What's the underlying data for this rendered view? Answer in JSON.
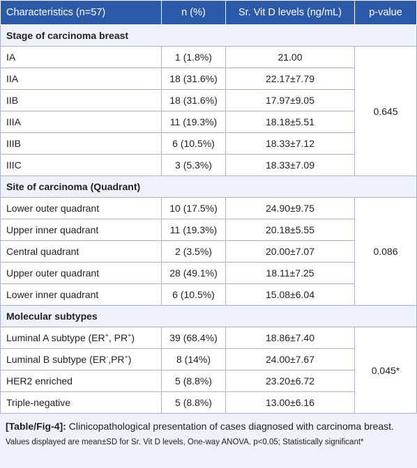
{
  "header": {
    "characteristics": "Characteristics (n=57)",
    "n_pct": "n (%)",
    "vitd": "Sr. Vit D levels (ng/mL)",
    "pvalue": "p-value"
  },
  "sections": [
    {
      "title": "Stage of carcinoma breast",
      "p_value": "0.645",
      "rows": [
        {
          "label": "IA",
          "n": "1 (1.8%)",
          "value": "21.00"
        },
        {
          "label": "IIA",
          "n": "18 (31.6%)",
          "value": "22.17±7.79"
        },
        {
          "label": "IIB",
          "n": "18 (31.6%)",
          "value": "17.97±9.05"
        },
        {
          "label": "IIIA",
          "n": "11 (19.3%)",
          "value": "18.18±5.51"
        },
        {
          "label": "IIIB",
          "n": "6 (10.5%)",
          "value": "18.33±7.12"
        },
        {
          "label": "IIIC",
          "n": "3 (5.3%)",
          "value": "18.33±7.09"
        }
      ]
    },
    {
      "title": "Site of carcinoma (Quadrant)",
      "p_value": "0.086",
      "rows": [
        {
          "label": "Lower outer quadrant",
          "n": "10 (17.5%)",
          "value": "24.90±9.75"
        },
        {
          "label": "Upper inner quadrant",
          "n": "11 (19.3%)",
          "value": "20.18±5.55"
        },
        {
          "label": "Central quadrant",
          "n": "2 (3.5%)",
          "value": "20.00±7.07"
        },
        {
          "label": "Upper outer quadrant",
          "n": "28 (49.1%)",
          "value": "18.11±7.25"
        },
        {
          "label": "Lower inner quadrant",
          "n": "6 (10.5%)",
          "value": "15.08±6.04"
        }
      ]
    },
    {
      "title": "Molecular subtypes",
      "p_value": "0.045*",
      "rows": [
        {
          "label_main": "Luminal A subtype (ER",
          "sup1": "+",
          "label_mid": ", PR",
          "sup2": "+",
          "label_end": ")",
          "n": "39 (68.4%)",
          "value": "18.86±7.40"
        },
        {
          "label_main": "Luminal B subtype (ER",
          "sup1": "-",
          "label_mid": ",PR",
          "sup2": "+",
          "label_end": ")",
          "n": "8 (14%)",
          "value": "24.00±7.67"
        },
        {
          "label": "HER2 enriched",
          "n": "5 (8.8%)",
          "value": "23.20±6.72"
        },
        {
          "label": "Triple-negative",
          "n": "5 (8.8%)",
          "value": "13.00±6.16"
        }
      ]
    }
  ],
  "caption": {
    "label": "[Table/Fig-4]:",
    "text": "Clinicopathological presentation of cases diagnosed with carcinoma breast.",
    "footnote": "Values displayed are mean±SD for Sr. Vit D levels, One-way ANOVA. p<0.05; Statistically significant*"
  }
}
